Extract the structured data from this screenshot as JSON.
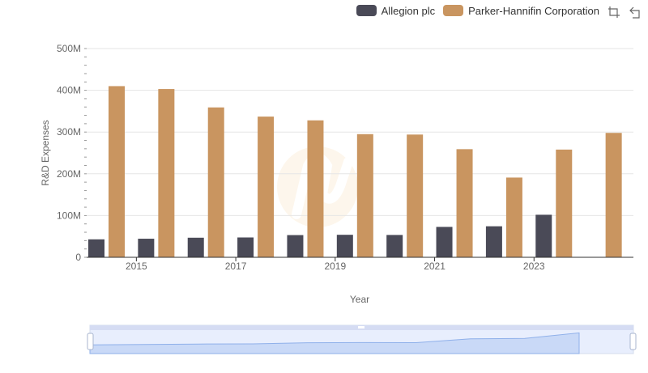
{
  "legend": {
    "items": [
      {
        "label": "Allegion plc",
        "color": "#4a4a57"
      },
      {
        "label": "Parker-Hannifin Corporation",
        "color": "#c99560"
      }
    ]
  },
  "toolbox": {
    "icons": [
      "zoom-select-icon",
      "zoom-reset-icon"
    ]
  },
  "chart_data": {
    "type": "bar",
    "xlabel": "Year",
    "ylabel": "R&D Expenses",
    "categories": [
      "2014",
      "2015",
      "2016",
      "2017",
      "2018",
      "2019",
      "2020",
      "2021",
      "2022",
      "2023",
      "2024"
    ],
    "x_tick_labels": [
      "2015",
      "2017",
      "2019",
      "2021",
      "2023"
    ],
    "y_tick_labels": [
      "0",
      "100M",
      "200M",
      "300M",
      "400M",
      "500M"
    ],
    "ylim": [
      0,
      500000000
    ],
    "grid": true,
    "legend_position": "top-right",
    "series": [
      {
        "name": "Allegion plc",
        "color": "#4a4a57",
        "values": [
          43000000,
          44500000,
          46900000,
          47500000,
          53200000,
          53900000,
          53500000,
          72800000,
          74300000,
          101900000,
          null
        ]
      },
      {
        "name": "Parker-Hannifin Corporation",
        "color": "#c99560",
        "values": [
          410000000,
          403000000,
          359000000,
          337000000,
          328000000,
          295000000,
          294000000,
          259000000,
          191000000,
          258000000,
          298000000
        ]
      }
    ]
  }
}
